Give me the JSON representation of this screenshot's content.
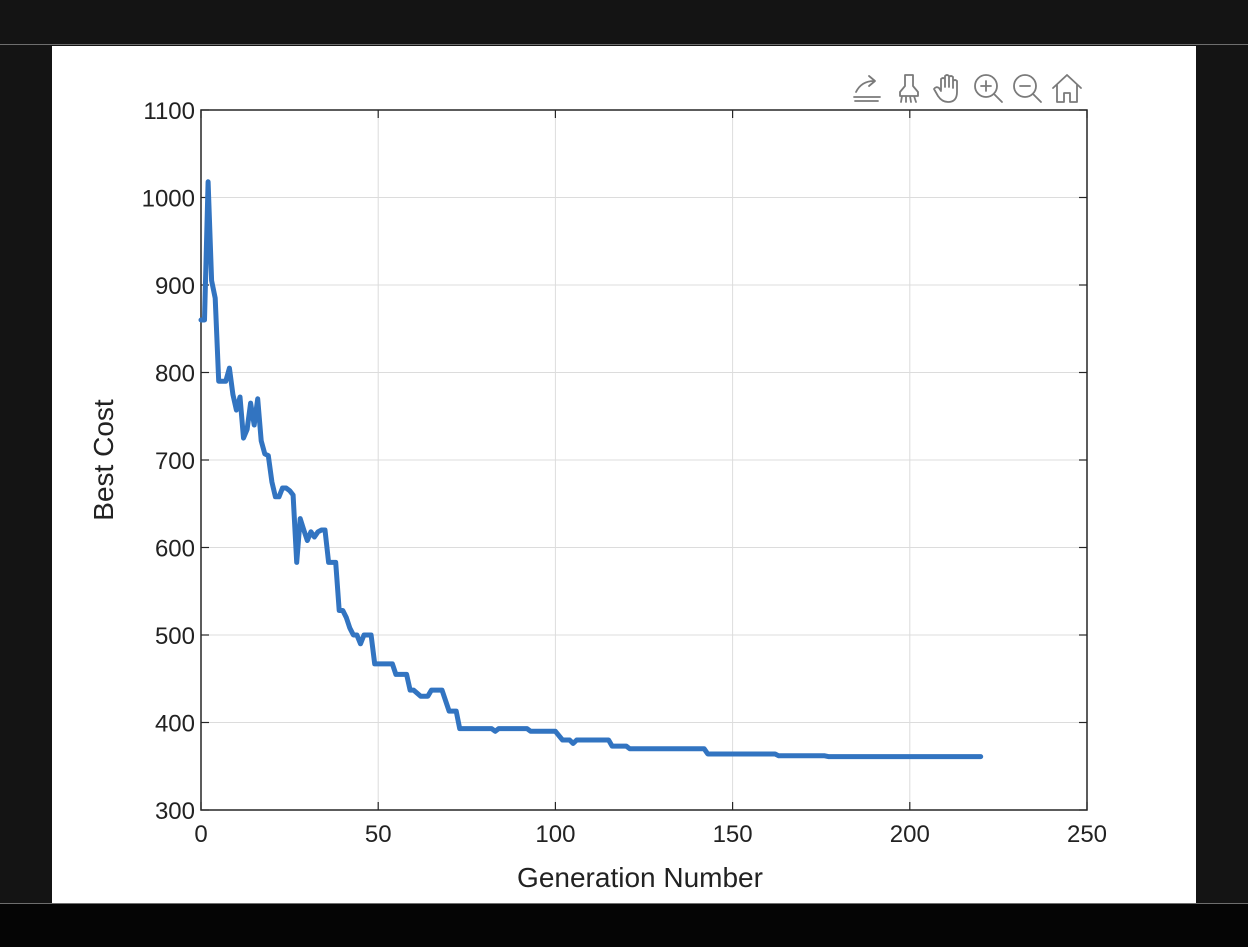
{
  "toolbar": {
    "icons": [
      "export-icon",
      "brush-icon",
      "pan-hand-icon",
      "zoom-in-icon",
      "zoom-out-icon",
      "home-icon"
    ]
  },
  "chart_data": {
    "type": "line",
    "title": "",
    "xlabel": "Generation Number",
    "ylabel": "Best Cost",
    "xlim": [
      0,
      250
    ],
    "ylim": [
      300,
      1100
    ],
    "xticks": [
      0,
      50,
      100,
      150,
      200,
      250
    ],
    "yticks": [
      300,
      400,
      500,
      600,
      700,
      800,
      900,
      1000,
      1100
    ],
    "grid": true,
    "line_color": "#3274c1",
    "series": [
      {
        "x": [
          0,
          1,
          2,
          3,
          4,
          5,
          6,
          7,
          8,
          9,
          10,
          11,
          12,
          13,
          14,
          15,
          16,
          17,
          18,
          19,
          20,
          21,
          22,
          23,
          24,
          25,
          26,
          27,
          28,
          29,
          30,
          31,
          32,
          33,
          34,
          35,
          36,
          37,
          38,
          39,
          40,
          41,
          42,
          43,
          44,
          45,
          46,
          47,
          48,
          49,
          50,
          52,
          54,
          55,
          56,
          58,
          59,
          60,
          62,
          63,
          64,
          65,
          66,
          68,
          70,
          71,
          72,
          73,
          75,
          80,
          82,
          83,
          84,
          85,
          90,
          92,
          93,
          95,
          100,
          102,
          103,
          104,
          105,
          106,
          107,
          110,
          115,
          116,
          118,
          120,
          121,
          125,
          130,
          135,
          140,
          142,
          143,
          145,
          150,
          155,
          160,
          162,
          163,
          165,
          170,
          172,
          173,
          175,
          176,
          177,
          180,
          185,
          190,
          195,
          200,
          205,
          206,
          207,
          210,
          214,
          215,
          216,
          220
        ],
        "y": [
          860,
          860,
          1018,
          905,
          885,
          790,
          790,
          790,
          805,
          775,
          757,
          772,
          725,
          735,
          765,
          740,
          770,
          722,
          707,
          705,
          675,
          658,
          658,
          668,
          668,
          665,
          660,
          583,
          633,
          620,
          608,
          618,
          612,
          618,
          620,
          620,
          583,
          583,
          583,
          528,
          528,
          520,
          508,
          500,
          500,
          490,
          500,
          500,
          500,
          467,
          467,
          467,
          467,
          455,
          455,
          455,
          437,
          437,
          430,
          430,
          430,
          437,
          437,
          437,
          413,
          413,
          413,
          393,
          393,
          393,
          393,
          390,
          393,
          393,
          393,
          393,
          390,
          390,
          390,
          380,
          380,
          380,
          376,
          380,
          380,
          380,
          380,
          373,
          373,
          373,
          370,
          370,
          370,
          370,
          370,
          370,
          364,
          364,
          364,
          364,
          364,
          364,
          362,
          362,
          362,
          362,
          362,
          362,
          362,
          361,
          361,
          361,
          361,
          361,
          361,
          361,
          361,
          361,
          361,
          361,
          361,
          361,
          361
        ]
      }
    ]
  }
}
